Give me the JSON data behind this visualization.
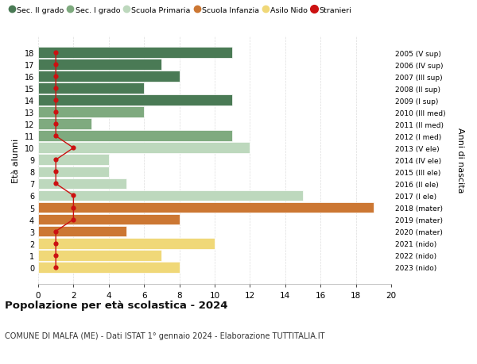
{
  "ages": [
    18,
    17,
    16,
    15,
    14,
    13,
    12,
    11,
    10,
    9,
    8,
    7,
    6,
    5,
    4,
    3,
    2,
    1,
    0
  ],
  "right_labels": [
    "2005 (V sup)",
    "2006 (IV sup)",
    "2007 (III sup)",
    "2008 (II sup)",
    "2009 (I sup)",
    "2010 (III med)",
    "2011 (II med)",
    "2012 (I med)",
    "2013 (V ele)",
    "2014 (IV ele)",
    "2015 (III ele)",
    "2016 (II ele)",
    "2017 (I ele)",
    "2018 (mater)",
    "2019 (mater)",
    "2020 (mater)",
    "2021 (nido)",
    "2022 (nido)",
    "2023 (nido)"
  ],
  "bar_values": [
    11,
    7,
    8,
    6,
    11,
    6,
    3,
    11,
    12,
    4,
    4,
    5,
    15,
    19,
    8,
    5,
    10,
    7,
    8
  ],
  "bar_colors": [
    "#4a7a55",
    "#4a7a55",
    "#4a7a55",
    "#4a7a55",
    "#4a7a55",
    "#7faa7f",
    "#7faa7f",
    "#7faa7f",
    "#bdd8bd",
    "#bdd8bd",
    "#bdd8bd",
    "#bdd8bd",
    "#bdd8bd",
    "#cc7733",
    "#cc7733",
    "#cc7733",
    "#f0d878",
    "#f0d878",
    "#f0d878"
  ],
  "stranieri_values": [
    1,
    1,
    1,
    1,
    1,
    1,
    1,
    1,
    2,
    1,
    1,
    1,
    2,
    2,
    2,
    1,
    1,
    1,
    1
  ],
  "stranieri_color": "#cc1111",
  "legend_labels": [
    "Sec. II grado",
    "Sec. I grado",
    "Scuola Primaria",
    "Scuola Infanzia",
    "Asilo Nido",
    "Stranieri"
  ],
  "legend_colors": [
    "#4a7a55",
    "#7faa7f",
    "#bdd8bd",
    "#cc7733",
    "#f0d878",
    "#cc1111"
  ],
  "ylabel": "Età alunni",
  "ylabel_right": "Anni di nascita",
  "title": "Popolazione per età scolastica - 2024",
  "subtitle": "COMUNE DI MALFA (ME) - Dati ISTAT 1° gennaio 2024 - Elaborazione TUTTITALIA.IT",
  "xlim": [
    0,
    20
  ],
  "xticks": [
    0,
    2,
    4,
    6,
    8,
    10,
    12,
    14,
    16,
    18,
    20
  ],
  "background_color": "#ffffff",
  "grid_color": "#dddddd"
}
